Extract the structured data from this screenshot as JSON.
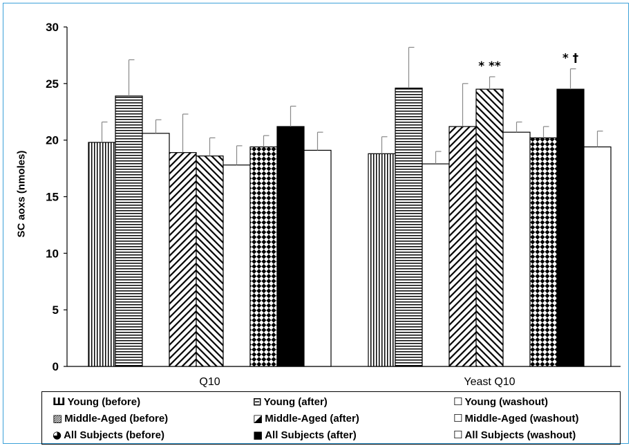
{
  "chart_data": {
    "type": "bar",
    "ylabel": "SC aoxs (nmoles)",
    "xlabel": "",
    "ylim": [
      0,
      30
    ],
    "yticks": [
      0,
      5,
      10,
      15,
      20,
      25,
      30
    ],
    "categories": [
      "Q10",
      "Yeast Q10"
    ],
    "series": [
      {
        "name": "Young (before)",
        "pattern": "vlines",
        "values": [
          19.8,
          18.8
        ],
        "errors": [
          1.8,
          1.5
        ]
      },
      {
        "name": "Young (after)",
        "pattern": "hlines",
        "values": [
          23.9,
          24.6
        ],
        "errors": [
          3.2,
          3.6
        ]
      },
      {
        "name": "Young (washout)",
        "pattern": "white",
        "values": [
          20.6,
          17.9
        ],
        "errors": [
          1.2,
          1.1
        ]
      },
      {
        "name": "Middle-Aged (before)",
        "pattern": "diag-right",
        "values": [
          18.9,
          21.2
        ],
        "errors": [
          3.4,
          3.8
        ]
      },
      {
        "name": "Middle-Aged (after)",
        "pattern": "diag-left",
        "values": [
          18.6,
          24.5
        ],
        "errors": [
          1.6,
          1.1
        ]
      },
      {
        "name": "Middle-Aged (washout)",
        "pattern": "white",
        "values": [
          17.8,
          20.7
        ],
        "errors": [
          1.7,
          0.9
        ]
      },
      {
        "name": "All Subjects (before)",
        "pattern": "checker",
        "values": [
          19.4,
          20.2
        ],
        "errors": [
          1.0,
          1.0
        ]
      },
      {
        "name": "All Subjects (after)",
        "pattern": "black",
        "values": [
          21.2,
          24.5
        ],
        "errors": [
          1.8,
          1.8
        ]
      },
      {
        "name": "All Subjects (washout)",
        "pattern": "white",
        "values": [
          19.1,
          19.4
        ],
        "errors": [
          1.6,
          1.4
        ]
      }
    ],
    "annotations": [
      {
        "category": "Yeast Q10",
        "series": "Middle-Aged (after)",
        "text": "*  **"
      },
      {
        "category": "Yeast Q10",
        "series": "All Subjects (after)",
        "text": "* †"
      }
    ],
    "legend_position": "bottom",
    "legend_columns": 3,
    "grid": false
  },
  "legend_items": [
    {
      "label": "Young (before)",
      "glyph": "Ш"
    },
    {
      "label": "Young (after)",
      "glyph": "⊟"
    },
    {
      "label": "Young (washout)",
      "glyph": "☐"
    },
    {
      "label": "Middle-Aged (before)",
      "glyph": "▨"
    },
    {
      "label": "Middle-Aged (after)",
      "glyph": "◪"
    },
    {
      "label": "Middle-Aged (washout)",
      "glyph": "☐"
    },
    {
      "label": "All Subjects (before)",
      "glyph": "◕"
    },
    {
      "label": "All Subjects (after)",
      "glyph": "■"
    },
    {
      "label": "All Subjects (washout)",
      "glyph": "☐"
    }
  ],
  "colors": {
    "frame": "#3aa0d8",
    "axis": "#000000",
    "error_bar": "#888888"
  }
}
